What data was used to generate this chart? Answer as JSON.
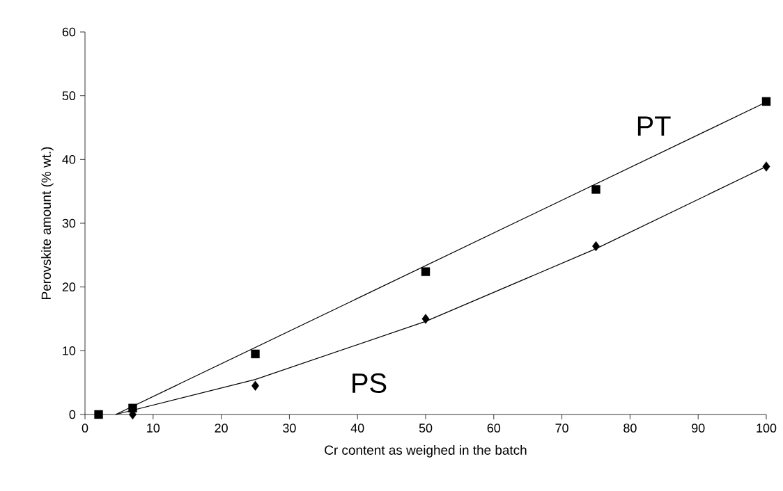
{
  "chart_data": {
    "type": "scatter",
    "xlabel": "Cr content as weighed in the batch",
    "ylabel": "Perovskite amount (% wt.)",
    "xlim": [
      0,
      100
    ],
    "xticks": [
      0,
      10,
      20,
      30,
      40,
      50,
      60,
      70,
      80,
      90,
      100
    ],
    "ylim": [
      0,
      60
    ],
    "yticks": [
      0,
      10,
      20,
      30,
      40,
      50,
      60
    ],
    "grid": false,
    "series": [
      {
        "name": "PT",
        "color": "#000000",
        "marker": "square",
        "x": [
          2,
          7,
          25,
          50,
          75,
          100
        ],
        "values": [
          0,
          1,
          9.5,
          22.4,
          35.3,
          49.1
        ]
      },
      {
        "name": "PS",
        "color": "#000000",
        "marker": "diamond",
        "x": [
          7,
          25,
          50,
          75,
          100
        ],
        "values": [
          0,
          4.5,
          15,
          26.4,
          38.9
        ]
      },
      {
        "type": "line",
        "color": "#000000",
        "marker": "none",
        "line_style": "solid",
        "x": [
          4.5,
          100
        ],
        "values": [
          0,
          49
        ]
      },
      {
        "type": "line",
        "color": "#000000",
        "marker": "none",
        "line_style": "solid",
        "x": [
          4.5,
          25,
          50,
          75,
          100
        ],
        "values": [
          0,
          5.5,
          14.6,
          26.0,
          38.9
        ]
      }
    ]
  }
}
